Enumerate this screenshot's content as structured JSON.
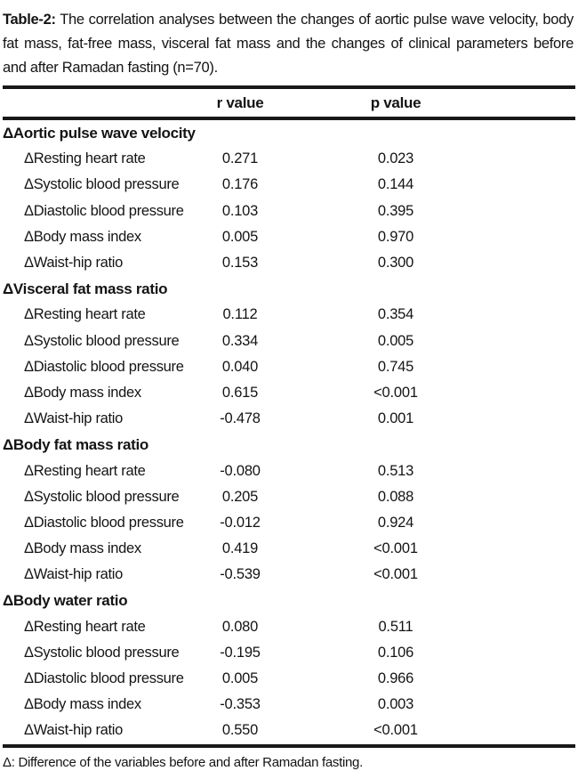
{
  "title": {
    "label": "Table-2:",
    "text": "The correlation analyses between the changes of aortic pulse wave velocity, body fat mass, fat-free mass, visceral fat mass and the changes of clinical parameters before and after Ramadan fasting (n=70)."
  },
  "table": {
    "columns": [
      "r value",
      "p value"
    ],
    "sections": [
      {
        "header": "ΔAortic pulse wave velocity",
        "rows": [
          {
            "label": "ΔResting heart rate",
            "r": "0.271",
            "p": "0.023"
          },
          {
            "label": "ΔSystolic blood pressure",
            "r": "0.176",
            "p": "0.144"
          },
          {
            "label": "ΔDiastolic blood pressure",
            "r": "0.103",
            "p": "0.395"
          },
          {
            "label": "ΔBody mass index",
            "r": "0.005",
            "p": "0.970"
          },
          {
            "label": "ΔWaist-hip ratio",
            "r": "0.153",
            "p": "0.300"
          }
        ]
      },
      {
        "header": "ΔVisceral fat mass ratio",
        "rows": [
          {
            "label": "ΔResting heart rate",
            "r": "0.112",
            "p": "0.354"
          },
          {
            "label": "ΔSystolic blood pressure",
            "r": "0.334",
            "p": "0.005"
          },
          {
            "label": "ΔDiastolic blood pressure",
            "r": "0.040",
            "p": "0.745"
          },
          {
            "label": "ΔBody mass index",
            "r": "0.615",
            "p": "<0.001"
          },
          {
            "label": "ΔWaist-hip ratio",
            "r": "-0.478",
            "p": "0.001"
          }
        ]
      },
      {
        "header": "ΔBody fat mass ratio",
        "rows": [
          {
            "label": "ΔResting heart rate",
            "r": "-0.080",
            "p": "0.513"
          },
          {
            "label": "ΔSystolic blood pressure",
            "r": "0.205",
            "p": "0.088"
          },
          {
            "label": "ΔDiastolic blood pressure",
            "r": "-0.012",
            "p": "0.924"
          },
          {
            "label": "ΔBody mass index",
            "r": "0.419",
            "p": "<0.001"
          },
          {
            "label": "ΔWaist-hip ratio",
            "r": "-0.539",
            "p": "<0.001"
          }
        ]
      },
      {
        "header": "ΔBody water ratio",
        "rows": [
          {
            "label": "ΔResting heart rate",
            "r": "0.080",
            "p": "0.511"
          },
          {
            "label": "ΔSystolic blood pressure",
            "r": "-0.195",
            "p": "0.106"
          },
          {
            "label": "ΔDiastolic blood pressure",
            "r": "0.005",
            "p": "0.966"
          },
          {
            "label": "ΔBody mass index",
            "r": "-0.353",
            "p": "0.003"
          },
          {
            "label": "ΔWaist-hip ratio",
            "r": "0.550",
            "p": "<0.001"
          }
        ]
      }
    ]
  },
  "footnote": "Δ: Difference of the variables before and after Ramadan fasting."
}
